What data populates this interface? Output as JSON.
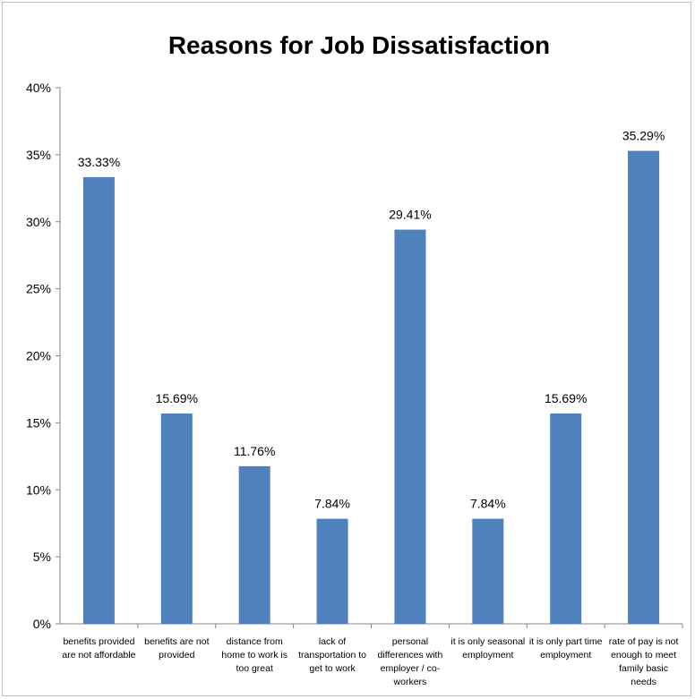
{
  "chart_data": {
    "type": "bar",
    "title": "Reasons for Job Dissatisfaction",
    "xlabel": "",
    "ylabel": "",
    "ylim": [
      0,
      40
    ],
    "yticks": [
      "0%",
      "5%",
      "10%",
      "15%",
      "20%",
      "25%",
      "30%",
      "35%",
      "40%"
    ],
    "grid": false,
    "legend": "none",
    "bar_color": "#4F81BD",
    "categories": [
      [
        "benefits provided",
        "are not affordable"
      ],
      [
        "benefits are not",
        "provided"
      ],
      [
        "distance from",
        "home to work is",
        "too great"
      ],
      [
        "lack of",
        "transportation to",
        "get to work"
      ],
      [
        "personal",
        "differences with",
        "employer / co-",
        "workers"
      ],
      [
        "it is only seasonal",
        "employment"
      ],
      [
        "it is only part time",
        "employment"
      ],
      [
        "rate of pay is not",
        "enough to meet",
        "family basic",
        "needs"
      ]
    ],
    "values": [
      33.33,
      15.69,
      11.76,
      7.84,
      29.41,
      7.84,
      15.69,
      35.29
    ],
    "data_labels": [
      "33.33%",
      "15.69%",
      "11.76%",
      "7.84%",
      "29.41%",
      "7.84%",
      "15.69%",
      "35.29%"
    ]
  }
}
